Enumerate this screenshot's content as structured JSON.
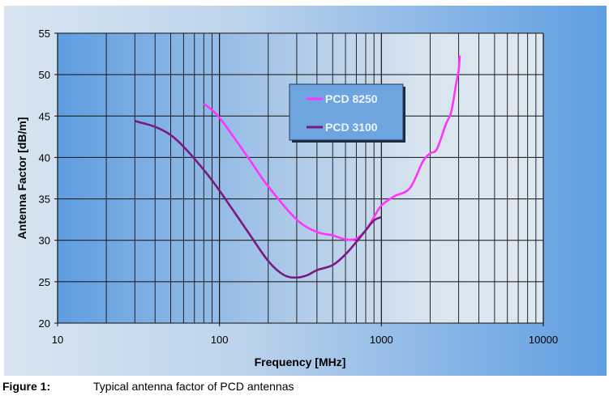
{
  "chart_data": {
    "type": "line",
    "xscale": "log",
    "xlabel": "Frequency [MHz]",
    "ylabel": "Antenna Factor [dB/m]",
    "xlim": [
      10,
      10000
    ],
    "ylim": [
      20,
      55
    ],
    "xticks": [
      "10",
      "100",
      "1000",
      "10000"
    ],
    "yticks": [
      "20",
      "25",
      "30",
      "35",
      "40",
      "45",
      "50",
      "55"
    ],
    "grid": true,
    "legend_position": "top-center",
    "series": [
      {
        "name": "PCD 8250",
        "color": "#ff33ff",
        "x": [
          80,
          100,
          150,
          200,
          300,
          400,
          500,
          600,
          700,
          800,
          900,
          1000,
          1200,
          1500,
          1800,
          2000,
          2200,
          2500,
          2700,
          2900,
          3000,
          3050
        ],
        "y": [
          46.5,
          44.8,
          40,
          36.5,
          32.5,
          31,
          30.6,
          30.1,
          30.2,
          31.2,
          32.8,
          34.2,
          35.3,
          36.3,
          39.5,
          40.5,
          41,
          44,
          45.5,
          49,
          50.5,
          52.3
        ]
      },
      {
        "name": "PCD 3100",
        "color": "#7a1a80",
        "x": [
          30,
          40,
          50,
          60,
          80,
          100,
          150,
          200,
          250,
          300,
          350,
          400,
          500,
          600,
          700,
          800,
          900,
          1000
        ],
        "y": [
          44.4,
          43.7,
          42.7,
          41.3,
          38.5,
          36,
          31,
          27.5,
          25.8,
          25.5,
          25.8,
          26.4,
          27,
          28.3,
          29.8,
          31.2,
          32.4,
          32.8
        ]
      }
    ]
  },
  "caption": {
    "label": "Figure 1:",
    "text": "Typical antenna factor of PCD antennas"
  }
}
